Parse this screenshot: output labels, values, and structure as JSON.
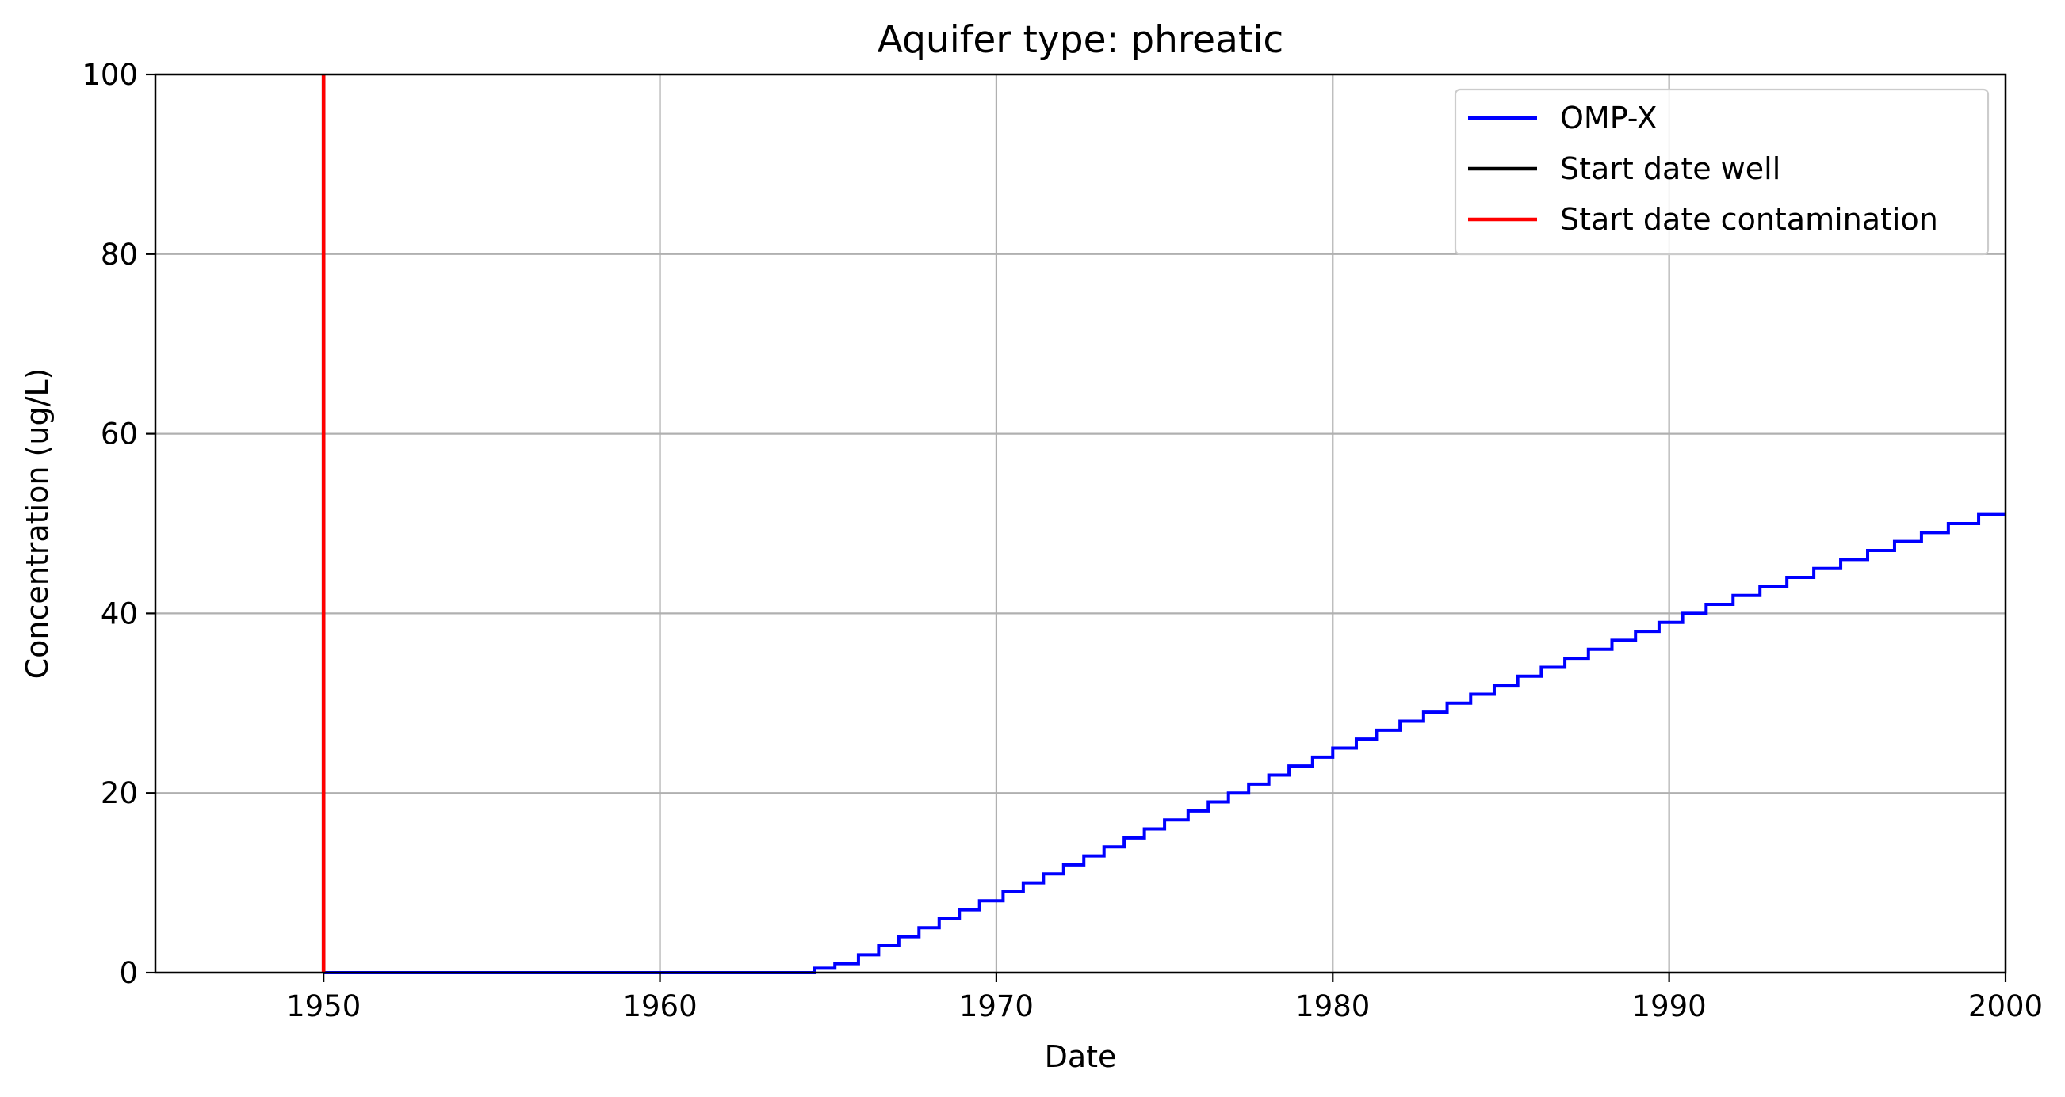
{
  "chart_data": {
    "type": "line",
    "title": "Aquifer type: phreatic",
    "xlabel": "Date",
    "ylabel": "Concentration (ug/L)",
    "xlim": [
      1945,
      2000
    ],
    "ylim": [
      0,
      100
    ],
    "x_ticks": [
      "1950",
      "1960",
      "1970",
      "1980",
      "1990",
      "2000"
    ],
    "y_ticks": [
      "0",
      "20",
      "40",
      "60",
      "80",
      "100"
    ],
    "grid": true,
    "legend_position": "top-right",
    "series": [
      {
        "name": "OMP-X",
        "color": "#0000ff",
        "step": true,
        "x": [
          1950.0,
          1964.0,
          1964.6,
          1965.2,
          1965.9,
          1966.5,
          1967.1,
          1967.7,
          1968.3,
          1968.9,
          1969.5,
          1970.2,
          1970.8,
          1971.4,
          1972.0,
          1972.6,
          1973.2,
          1973.8,
          1974.4,
          1975.0,
          1975.7,
          1976.3,
          1976.9,
          1977.5,
          1978.1,
          1978.7,
          1979.4,
          1980.0,
          1980.7,
          1981.3,
          1982.0,
          1982.7,
          1983.4,
          1984.1,
          1984.8,
          1985.5,
          1986.2,
          1986.9,
          1987.6,
          1988.3,
          1989.0,
          1989.7,
          1990.4,
          1991.1,
          1991.9,
          1992.7,
          1993.5,
          1994.3,
          1995.1,
          1995.9,
          1996.7,
          1997.5,
          1998.3,
          1999.2,
          2000.0
        ],
        "y": [
          0,
          0,
          0.5,
          1,
          2,
          3,
          4,
          5,
          6,
          7,
          8,
          9,
          10,
          11,
          12,
          13,
          14,
          15,
          16,
          17,
          18,
          19,
          20,
          21,
          22,
          23,
          24,
          25,
          26,
          27,
          28,
          29,
          30,
          31,
          32,
          33,
          34,
          35,
          36,
          37,
          38,
          39,
          40,
          41,
          42,
          43,
          44,
          45,
          46,
          47,
          48,
          49,
          50,
          51,
          51
        ]
      },
      {
        "name": "Start date well",
        "color": "#000000",
        "vline_x": 1950.0
      },
      {
        "name": "Start date contamination",
        "color": "#ff0000",
        "vline_x": 1950.0
      }
    ]
  }
}
